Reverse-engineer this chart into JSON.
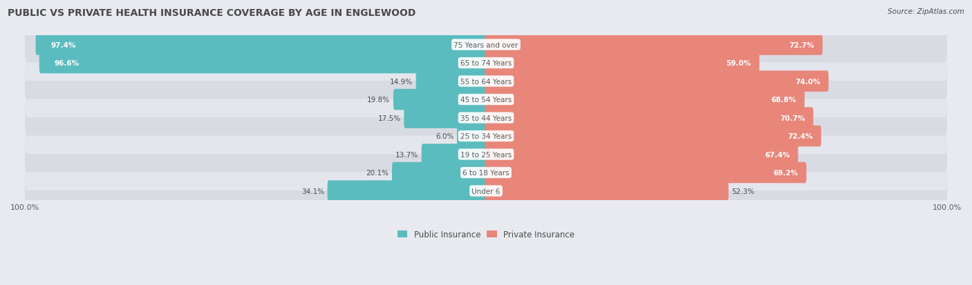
{
  "title": "PUBLIC VS PRIVATE HEALTH INSURANCE COVERAGE BY AGE IN ENGLEWOOD",
  "source": "Source: ZipAtlas.com",
  "categories": [
    "Under 6",
    "6 to 18 Years",
    "19 to 25 Years",
    "25 to 34 Years",
    "35 to 44 Years",
    "45 to 54 Years",
    "55 to 64 Years",
    "65 to 74 Years",
    "75 Years and over"
  ],
  "public_values": [
    34.1,
    20.1,
    13.7,
    6.0,
    17.5,
    19.8,
    14.9,
    96.6,
    97.4
  ],
  "private_values": [
    52.3,
    69.2,
    67.4,
    72.4,
    70.7,
    68.8,
    74.0,
    59.0,
    72.7
  ],
  "public_color": "#5bbcbf",
  "private_color": "#e8867a",
  "background_color": "#e8eaf0",
  "title_color": "#4a4a4a",
  "category_color": "#5a5a5a",
  "axis_label_color": "#5a5a5a",
  "max_value": 100.0,
  "legend_labels": [
    "Public Insurance",
    "Private Insurance"
  ],
  "bar_height": 0.55,
  "row_bg_colors": [
    "#d9dbe3",
    "#e4e6ed"
  ]
}
